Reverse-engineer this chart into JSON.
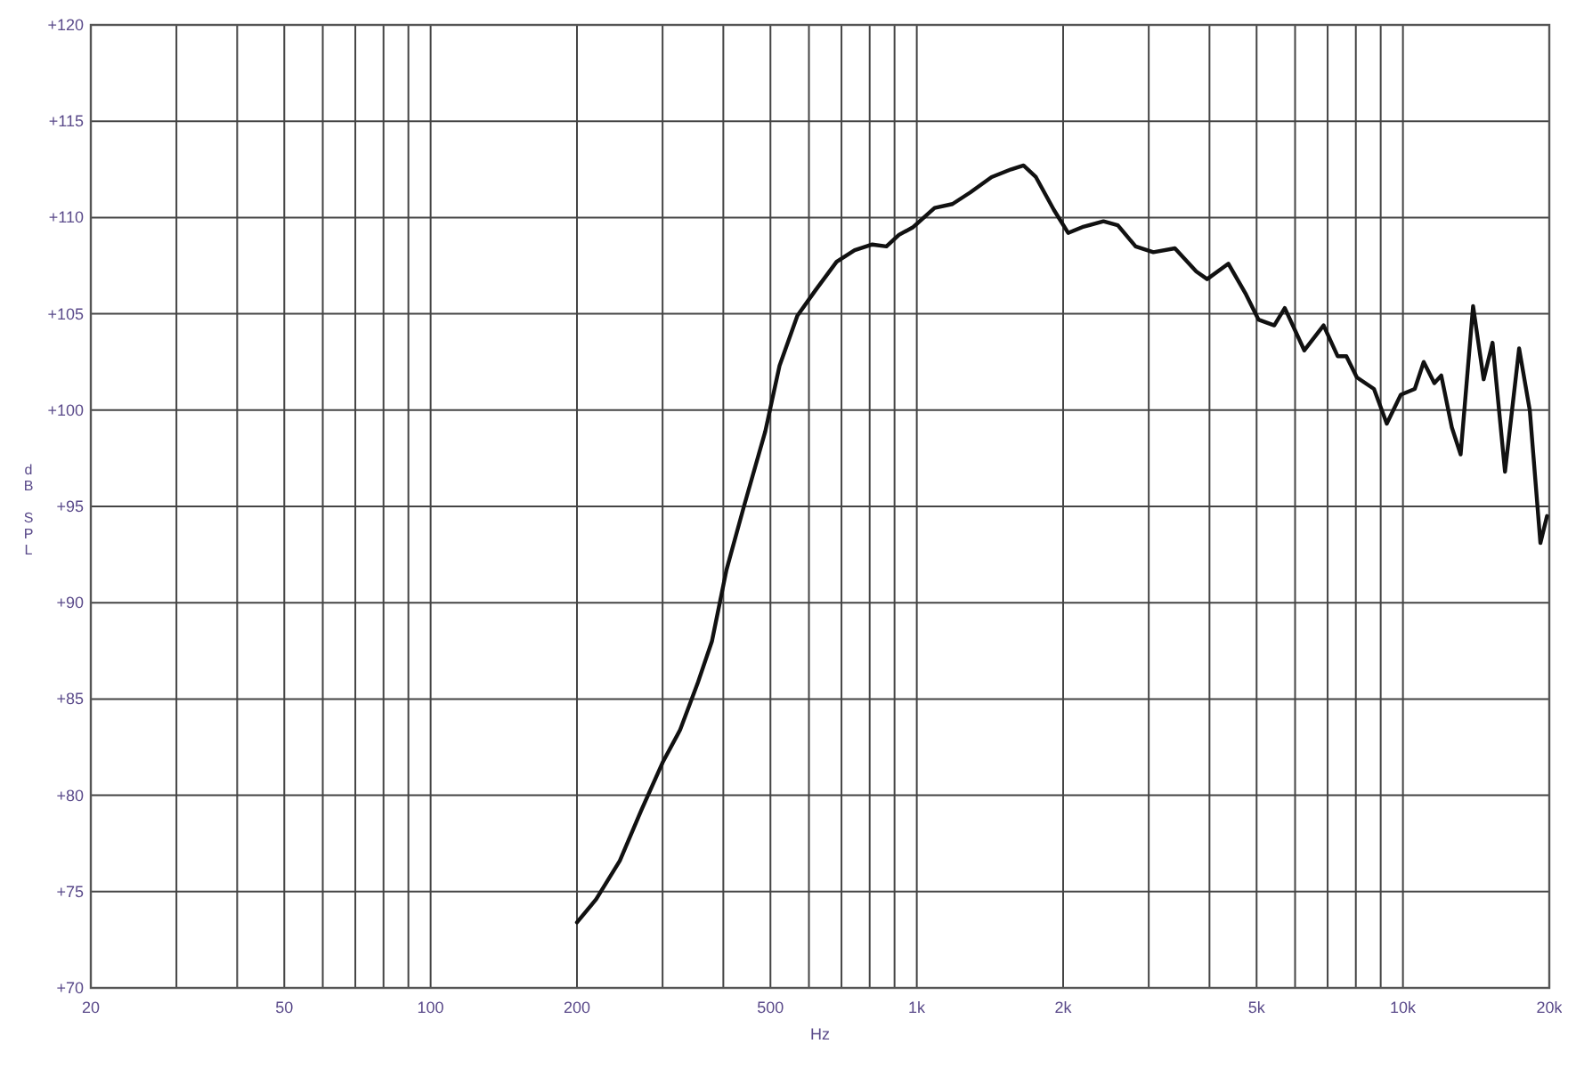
{
  "chart_data": {
    "type": "line",
    "xlabel": "Hz",
    "ylabel": "dB SPL",
    "log": "x",
    "grid": true,
    "line_style": "solid",
    "marker": "none",
    "xlim": [
      20,
      20000
    ],
    "ylim": [
      70,
      120
    ],
    "xticks": [
      20,
      {
        "value": 30,
        "label": null
      },
      {
        "value": 40,
        "label": null
      },
      50,
      {
        "value": 60,
        "label": null
      },
      {
        "value": 70,
        "label": null
      },
      {
        "value": 80,
        "label": null
      },
      {
        "value": 90,
        "label": null
      },
      100,
      200,
      {
        "value": 300,
        "label": null
      },
      {
        "value": 400,
        "label": null
      },
      500,
      {
        "value": 600,
        "label": null
      },
      {
        "value": 700,
        "label": null
      },
      {
        "value": 800,
        "label": null
      },
      {
        "value": 900,
        "label": null
      },
      {
        "value": 1000,
        "label": "1k"
      },
      {
        "value": 2000,
        "label": "2k"
      },
      {
        "value": 3000,
        "label": null
      },
      {
        "value": 4000,
        "label": null
      },
      {
        "value": 5000,
        "label": "5k"
      },
      {
        "value": 6000,
        "label": null
      },
      {
        "value": 7000,
        "label": null
      },
      {
        "value": 8000,
        "label": null
      },
      {
        "value": 9000,
        "label": null
      },
      {
        "value": 10000,
        "label": "10k"
      },
      {
        "value": 20000,
        "label": "20k"
      }
    ],
    "yticks": [
      {
        "value": 70,
        "label": "+70"
      },
      {
        "value": 75,
        "label": "+75"
      },
      {
        "value": 80,
        "label": "+80"
      },
      {
        "value": 85,
        "label": "+85"
      },
      {
        "value": 90,
        "label": "+90"
      },
      {
        "value": 95,
        "label": "+95"
      },
      {
        "value": 100,
        "label": "+100"
      },
      {
        "value": 105,
        "label": "+105"
      },
      {
        "value": 110,
        "label": "+110"
      },
      {
        "value": 115,
        "label": "+115"
      },
      {
        "value": 120,
        "label": "+120"
      }
    ],
    "series": [
      {
        "color": "#111111",
        "x": [
          200,
          219,
          245,
          271,
          300,
          326,
          354,
          379,
          406,
          441,
          488,
          522,
          568,
          618,
          684,
          745,
          810,
          866,
          919,
          983,
          1088,
          1184,
          1288,
          1425,
          1563,
          1658,
          1758,
          1914,
          2048,
          2190,
          2421,
          2591,
          2819,
          3066,
          3396,
          3757,
          3956,
          4375,
          4757,
          5044,
          5436,
          5714,
          6268,
          6867,
          7339,
          7649,
          8039,
          8718,
          9263,
          9899,
          10577,
          11033,
          11604,
          11990,
          12606,
          13142,
          13941,
          14656,
          15286,
          16216,
          17338,
          18234,
          19176,
          19787
        ],
        "values": [
          73.4,
          74.6,
          76.6,
          79.2,
          81.7,
          83.4,
          85.8,
          88.0,
          91.7,
          95.0,
          98.9,
          102.3,
          104.9,
          106.2,
          107.7,
          108.3,
          108.6,
          108.5,
          109.1,
          109.5,
          110.5,
          110.7,
          111.3,
          112.1,
          112.5,
          112.7,
          112.1,
          110.4,
          109.2,
          109.5,
          109.8,
          109.6,
          108.5,
          108.2,
          108.4,
          107.2,
          106.8,
          107.6,
          106.0,
          104.7,
          104.4,
          105.3,
          103.1,
          104.4,
          102.8,
          102.8,
          101.7,
          101.1,
          99.3,
          100.8,
          101.1,
          102.5,
          101.4,
          101.8,
          99.1,
          97.7,
          105.4,
          101.6,
          103.5,
          96.8,
          103.2,
          100.0,
          93.1,
          94.5
        ]
      }
    ]
  }
}
